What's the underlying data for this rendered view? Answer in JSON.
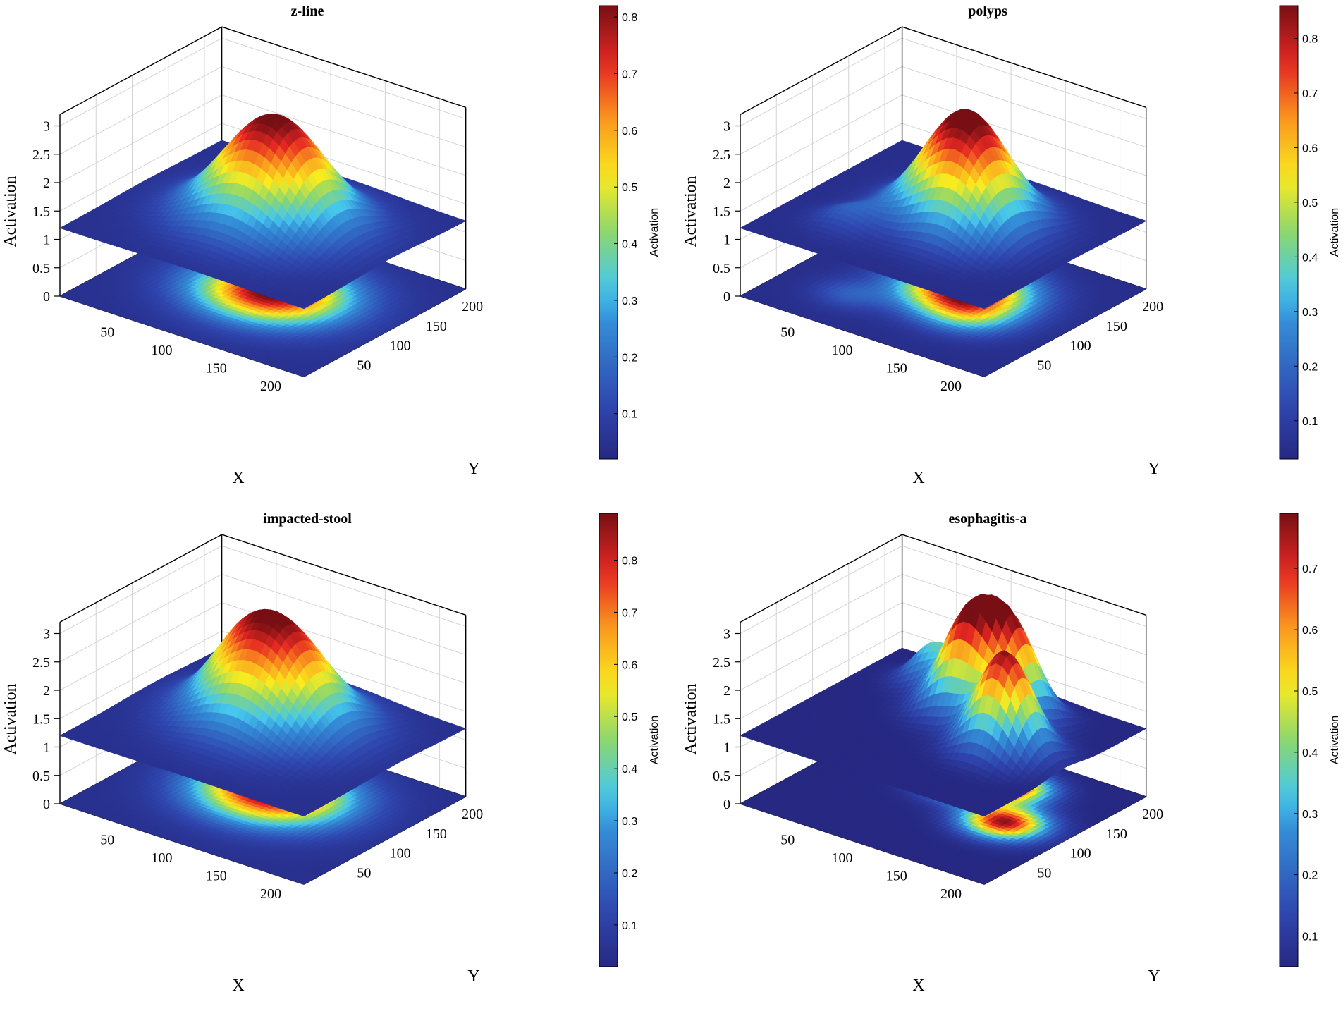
{
  "chart_data": [
    {
      "type": "surface3d",
      "title": "z-line",
      "xlabel": "X",
      "ylabel": "Y",
      "zlabel": "Activation",
      "colorbar_label": "Activation",
      "x_ticks": [
        50,
        100,
        150,
        200
      ],
      "y_ticks": [
        50,
        100,
        150,
        200
      ],
      "z_ticks": [
        "0",
        "0.5",
        "1",
        "1.5",
        "2",
        "2.5",
        "3"
      ],
      "colorbar_ticks": [
        "0.1",
        "0.2",
        "0.3",
        "0.4",
        "0.5",
        "0.6",
        "0.7",
        "0.8"
      ],
      "colorbar_range": [
        0.02,
        0.82
      ],
      "xlim": [
        0,
        224
      ],
      "ylim": [
        0,
        224
      ],
      "zlim": [
        0,
        3.2
      ],
      "surface_offset": 1.2,
      "blobs": [
        {
          "x": 118,
          "y": 118,
          "amp": 0.8,
          "sigma": 40
        }
      ],
      "colormap": "jet"
    },
    {
      "type": "surface3d",
      "title": "polyps",
      "xlabel": "X",
      "ylabel": "Y",
      "zlabel": "Activation",
      "colorbar_label": "Activation",
      "x_ticks": [
        50,
        100,
        150,
        200
      ],
      "y_ticks": [
        50,
        100,
        150,
        200
      ],
      "z_ticks": [
        "0",
        "0.5",
        "1",
        "1.5",
        "2",
        "2.5",
        "3"
      ],
      "colorbar_ticks": [
        "0.1",
        "0.2",
        "0.3",
        "0.4",
        "0.5",
        "0.6",
        "0.7",
        "0.8"
      ],
      "colorbar_range": [
        0.03,
        0.86
      ],
      "xlim": [
        0,
        224
      ],
      "ylim": [
        0,
        224
      ],
      "zlim": [
        0,
        3.2
      ],
      "surface_offset": 1.2,
      "blobs": [
        {
          "x": 122,
          "y": 128,
          "amp": 0.83,
          "sigma": 34
        },
        {
          "x": 150,
          "y": 90,
          "amp": 0.25,
          "sigma": 25
        },
        {
          "x": 60,
          "y": 60,
          "amp": 0.12,
          "sigma": 20
        }
      ],
      "colormap": "jet"
    },
    {
      "type": "surface3d",
      "title": "impacted-stool",
      "xlabel": "X",
      "ylabel": "Y",
      "zlabel": "Activation",
      "colorbar_label": "Activation",
      "x_ticks": [
        50,
        100,
        150,
        200
      ],
      "y_ticks": [
        50,
        100,
        150,
        200
      ],
      "z_ticks": [
        "0",
        "0.5",
        "1",
        "1.5",
        "2",
        "2.5",
        "3"
      ],
      "colorbar_ticks": [
        "0.1",
        "0.2",
        "0.3",
        "0.4",
        "0.5",
        "0.6",
        "0.7",
        "0.8"
      ],
      "colorbar_range": [
        0.02,
        0.89
      ],
      "xlim": [
        0,
        224
      ],
      "ylim": [
        0,
        224
      ],
      "zlim": [
        0,
        3.2
      ],
      "surface_offset": 1.2,
      "blobs": [
        {
          "x": 112,
          "y": 128,
          "amp": 0.86,
          "sigma": 40
        },
        {
          "x": 70,
          "y": 150,
          "amp": 0.2,
          "sigma": 22
        }
      ],
      "colormap": "jet"
    },
    {
      "type": "surface3d",
      "title": "esophagitis-a",
      "xlabel": "X",
      "ylabel": "Y",
      "zlabel": "Activation",
      "colorbar_label": "Activation",
      "x_ticks": [
        50,
        100,
        150,
        200
      ],
      "y_ticks": [
        50,
        100,
        150,
        200
      ],
      "z_ticks": [
        "0",
        "0.5",
        "1",
        "1.5",
        "2",
        "2.5",
        "3"
      ],
      "colorbar_ticks": [
        "0.1",
        "0.2",
        "0.3",
        "0.4",
        "0.5",
        "0.6",
        "0.7"
      ],
      "colorbar_range": [
        0.05,
        0.79
      ],
      "xlim": [
        0,
        224
      ],
      "ylim": [
        0,
        224
      ],
      "zlim": [
        0,
        3.2
      ],
      "surface_offset": 1.2,
      "blobs": [
        {
          "x": 110,
          "y": 150,
          "amp": 0.7,
          "sigma": 22
        },
        {
          "x": 170,
          "y": 110,
          "amp": 0.72,
          "sigma": 22
        },
        {
          "x": 140,
          "y": 170,
          "amp": 0.55,
          "sigma": 20
        },
        {
          "x": 60,
          "y": 180,
          "amp": 0.3,
          "sigma": 18
        }
      ],
      "colormap": "jet"
    }
  ]
}
